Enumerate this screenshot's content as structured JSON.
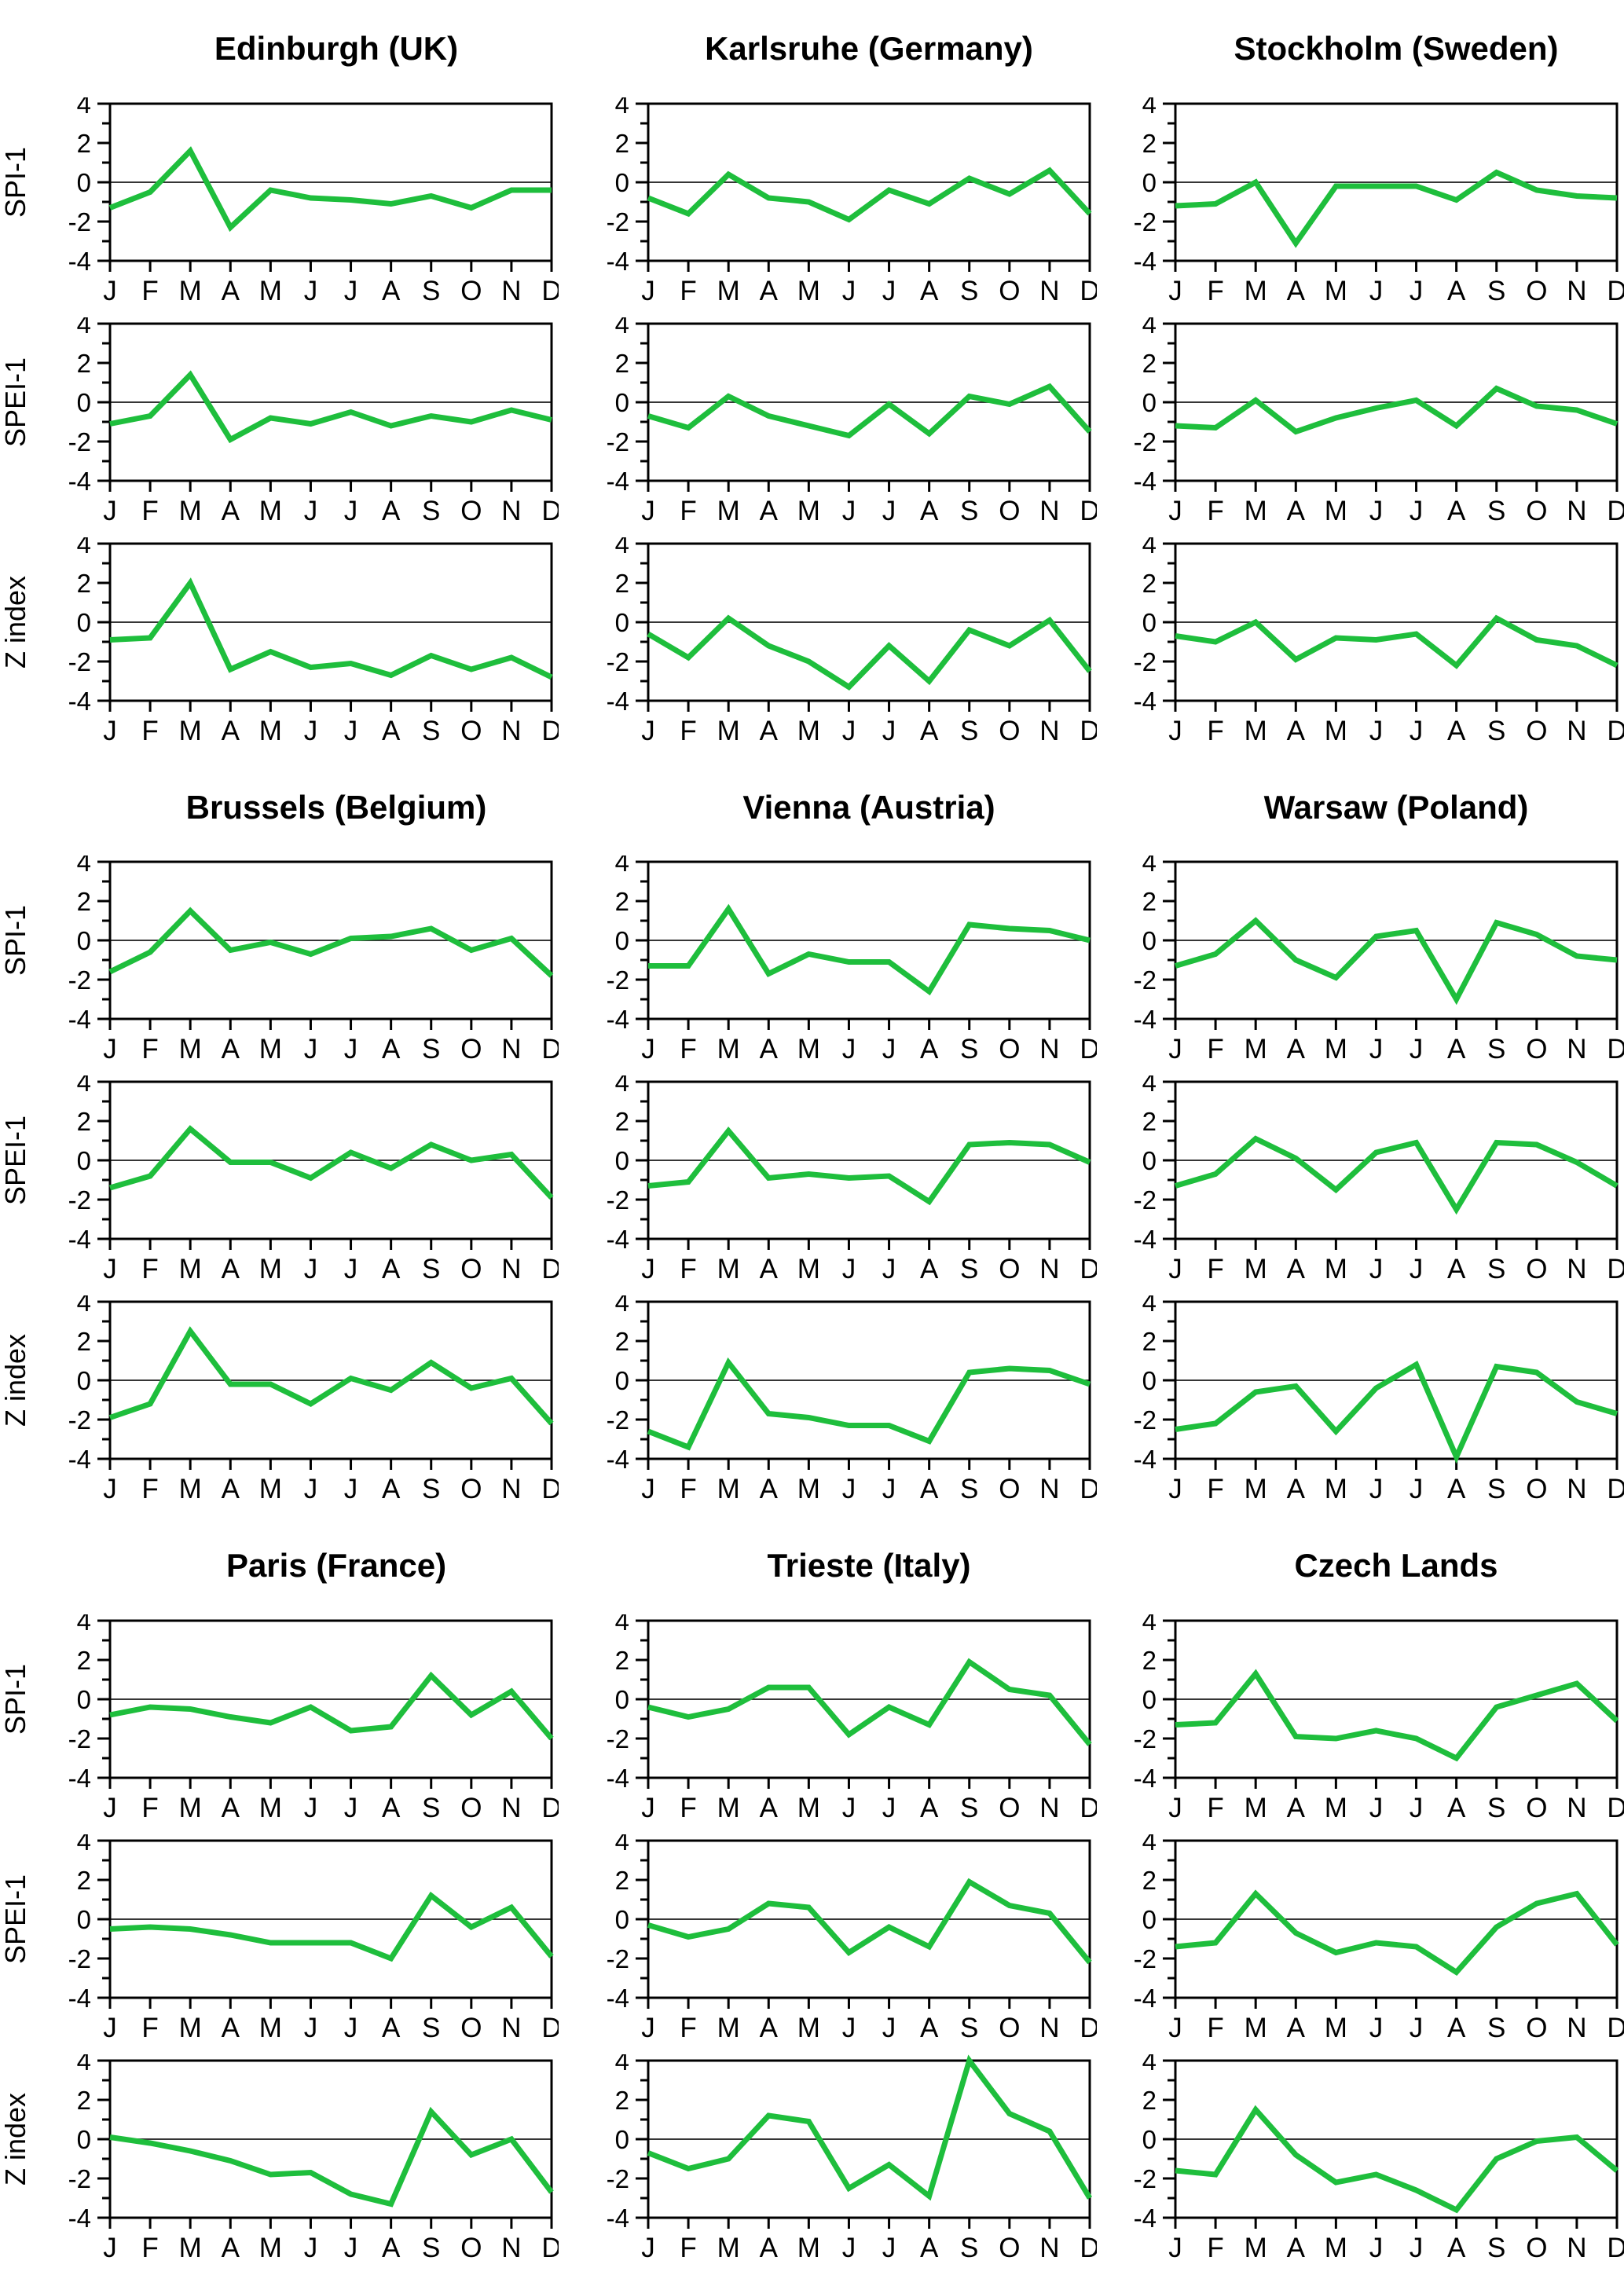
{
  "chart_data": {
    "type": "line",
    "layout": "3x3 panel grid, each panel has 3 stacked monthly line charts",
    "x_tick_labels": [
      "J",
      "F",
      "M",
      "A",
      "M",
      "J",
      "J",
      "A",
      "S",
      "O",
      "N",
      "D"
    ],
    "y_tick_labels": [
      "4",
      "2",
      "0",
      "-2",
      "-4"
    ],
    "y_major_ticks": [
      4,
      2,
      0,
      -2,
      -4
    ],
    "y_minor_ticks": [
      3,
      1,
      -1,
      -3
    ],
    "ylim": [
      -4,
      4
    ],
    "zero_line": true,
    "grid": false,
    "legend_position": "none",
    "line_color": "#1ebe3c",
    "axis_color": "#000000",
    "zero_line_color": "#1a1a1a",
    "row_labels": [
      "SPI-1",
      "SPEI-1",
      "Z index"
    ],
    "panels": [
      {
        "title": "Edinburgh (UK)",
        "series": [
          {
            "name": "SPI-1",
            "values": [
              -1.3,
              -0.5,
              1.6,
              -2.3,
              -0.4,
              -0.8,
              -0.9,
              -1.1,
              -0.7,
              -1.3,
              -0.4,
              -0.4
            ]
          },
          {
            "name": "SPEI-1",
            "values": [
              -1.1,
              -0.7,
              1.4,
              -1.9,
              -0.8,
              -1.1,
              -0.5,
              -1.2,
              -0.7,
              -1.0,
              -0.4,
              -0.9
            ]
          },
          {
            "name": "Z index",
            "values": [
              -0.9,
              -0.8,
              2.0,
              -2.4,
              -1.5,
              -2.3,
              -2.1,
              -2.7,
              -1.7,
              -2.4,
              -1.8,
              -2.8
            ]
          }
        ]
      },
      {
        "title": "Karlsruhe (Germany)",
        "series": [
          {
            "name": "SPI-1",
            "values": [
              -0.8,
              -1.6,
              0.4,
              -0.8,
              -1.0,
              -1.9,
              -0.4,
              -1.1,
              0.2,
              -0.6,
              0.6,
              -1.6
            ]
          },
          {
            "name": "SPEI-1",
            "values": [
              -0.7,
              -1.3,
              0.3,
              -0.7,
              -1.2,
              -1.7,
              -0.1,
              -1.6,
              0.3,
              -0.1,
              0.8,
              -1.5
            ]
          },
          {
            "name": "Z index",
            "values": [
              -0.6,
              -1.8,
              0.2,
              -1.2,
              -2.0,
              -3.3,
              -1.2,
              -3.0,
              -0.4,
              -1.2,
              0.1,
              -2.5
            ]
          }
        ]
      },
      {
        "title": "Stockholm (Sweden)",
        "series": [
          {
            "name": "SPI-1",
            "values": [
              -1.2,
              -1.1,
              0.0,
              -3.1,
              -0.2,
              -0.2,
              -0.2,
              -0.9,
              0.5,
              -0.4,
              -0.7,
              -0.8
            ]
          },
          {
            "name": "SPEI-1",
            "values": [
              -1.2,
              -1.3,
              0.1,
              -1.5,
              -0.8,
              -0.3,
              0.1,
              -1.2,
              0.7,
              -0.2,
              -0.4,
              -1.1
            ]
          },
          {
            "name": "Z index",
            "values": [
              -0.7,
              -1.0,
              0.0,
              -1.9,
              -0.8,
              -0.9,
              -0.6,
              -2.2,
              0.2,
              -0.9,
              -1.2,
              -2.2
            ]
          }
        ]
      },
      {
        "title": "Brussels (Belgium)",
        "series": [
          {
            "name": "SPI-1",
            "values": [
              -1.6,
              -0.6,
              1.5,
              -0.5,
              -0.1,
              -0.7,
              0.1,
              0.2,
              0.6,
              -0.5,
              0.1,
              -1.8
            ]
          },
          {
            "name": "SPEI-1",
            "values": [
              -1.4,
              -0.8,
              1.6,
              -0.1,
              -0.1,
              -0.9,
              0.4,
              -0.4,
              0.8,
              0.0,
              0.3,
              -1.9
            ]
          },
          {
            "name": "Z index",
            "values": [
              -1.9,
              -1.2,
              2.5,
              -0.2,
              -0.2,
              -1.2,
              0.1,
              -0.5,
              0.9,
              -0.4,
              0.1,
              -2.2
            ]
          }
        ]
      },
      {
        "title": "Vienna (Austria)",
        "series": [
          {
            "name": "SPI-1",
            "values": [
              -1.3,
              -1.3,
              1.6,
              -1.7,
              -0.7,
              -1.1,
              -1.1,
              -2.6,
              0.8,
              0.6,
              0.5,
              0.0
            ]
          },
          {
            "name": "SPEI-1",
            "values": [
              -1.3,
              -1.1,
              1.5,
              -0.9,
              -0.7,
              -0.9,
              -0.8,
              -2.1,
              0.8,
              0.9,
              0.8,
              -0.1
            ]
          },
          {
            "name": "Z index",
            "values": [
              -2.6,
              -3.4,
              0.9,
              -1.7,
              -1.9,
              -2.3,
              -2.3,
              -3.1,
              0.4,
              0.6,
              0.5,
              -0.2
            ]
          }
        ]
      },
      {
        "title": "Warsaw (Poland)",
        "series": [
          {
            "name": "SPI-1",
            "values": [
              -1.3,
              -0.7,
              1.0,
              -1.0,
              -1.9,
              0.2,
              0.5,
              -3.0,
              0.9,
              0.3,
              -0.8,
              -1.0
            ]
          },
          {
            "name": "SPEI-1",
            "values": [
              -1.3,
              -0.7,
              1.1,
              0.1,
              -1.5,
              0.4,
              0.9,
              -2.5,
              0.9,
              0.8,
              -0.1,
              -1.3
            ]
          },
          {
            "name": "Z index",
            "values": [
              -2.5,
              -2.2,
              -0.6,
              -0.3,
              -2.6,
              -0.4,
              0.8,
              -3.9,
              0.7,
              0.4,
              -1.1,
              -1.7
            ]
          }
        ]
      },
      {
        "title": "Paris (France)",
        "series": [
          {
            "name": "SPI-1",
            "values": [
              -0.8,
              -0.4,
              -0.5,
              -0.9,
              -1.2,
              -0.4,
              -1.6,
              -1.4,
              1.2,
              -0.8,
              0.4,
              -2.0
            ]
          },
          {
            "name": "SPEI-1",
            "values": [
              -0.5,
              -0.4,
              -0.5,
              -0.8,
              -1.2,
              -1.2,
              -1.2,
              -2.0,
              1.2,
              -0.4,
              0.6,
              -1.9
            ]
          },
          {
            "name": "Z index",
            "values": [
              0.1,
              -0.2,
              -0.6,
              -1.1,
              -1.8,
              -1.7,
              -2.8,
              -3.3,
              1.4,
              -0.8,
              0.0,
              -2.7
            ]
          }
        ]
      },
      {
        "title": "Trieste (Italy)",
        "series": [
          {
            "name": "SPI-1",
            "values": [
              -0.4,
              -0.9,
              -0.5,
              0.6,
              0.6,
              -1.8,
              -0.4,
              -1.3,
              1.9,
              0.5,
              0.2,
              -2.3
            ]
          },
          {
            "name": "SPEI-1",
            "values": [
              -0.3,
              -0.9,
              -0.5,
              0.8,
              0.6,
              -1.7,
              -0.4,
              -1.4,
              1.9,
              0.7,
              0.3,
              -2.2
            ]
          },
          {
            "name": "Z index",
            "values": [
              -0.7,
              -1.5,
              -1.0,
              1.2,
              0.9,
              -2.5,
              -1.3,
              -2.9,
              4.0,
              1.3,
              0.4,
              -3.0
            ]
          }
        ]
      },
      {
        "title": "Czech Lands",
        "series": [
          {
            "name": "SPI-1",
            "values": [
              -1.3,
              -1.2,
              1.3,
              -1.9,
              -2.0,
              -1.6,
              -2.0,
              -3.0,
              -0.4,
              0.2,
              0.8,
              -1.1
            ]
          },
          {
            "name": "SPEI-1",
            "values": [
              -1.4,
              -1.2,
              1.3,
              -0.7,
              -1.7,
              -1.2,
              -1.4,
              -2.7,
              -0.4,
              0.8,
              1.3,
              -1.3
            ]
          },
          {
            "name": "Z index",
            "values": [
              -1.6,
              -1.8,
              1.5,
              -0.8,
              -2.2,
              -1.8,
              -2.6,
              -3.6,
              -1.0,
              -0.1,
              0.1,
              -1.6
            ]
          }
        ]
      }
    ]
  }
}
